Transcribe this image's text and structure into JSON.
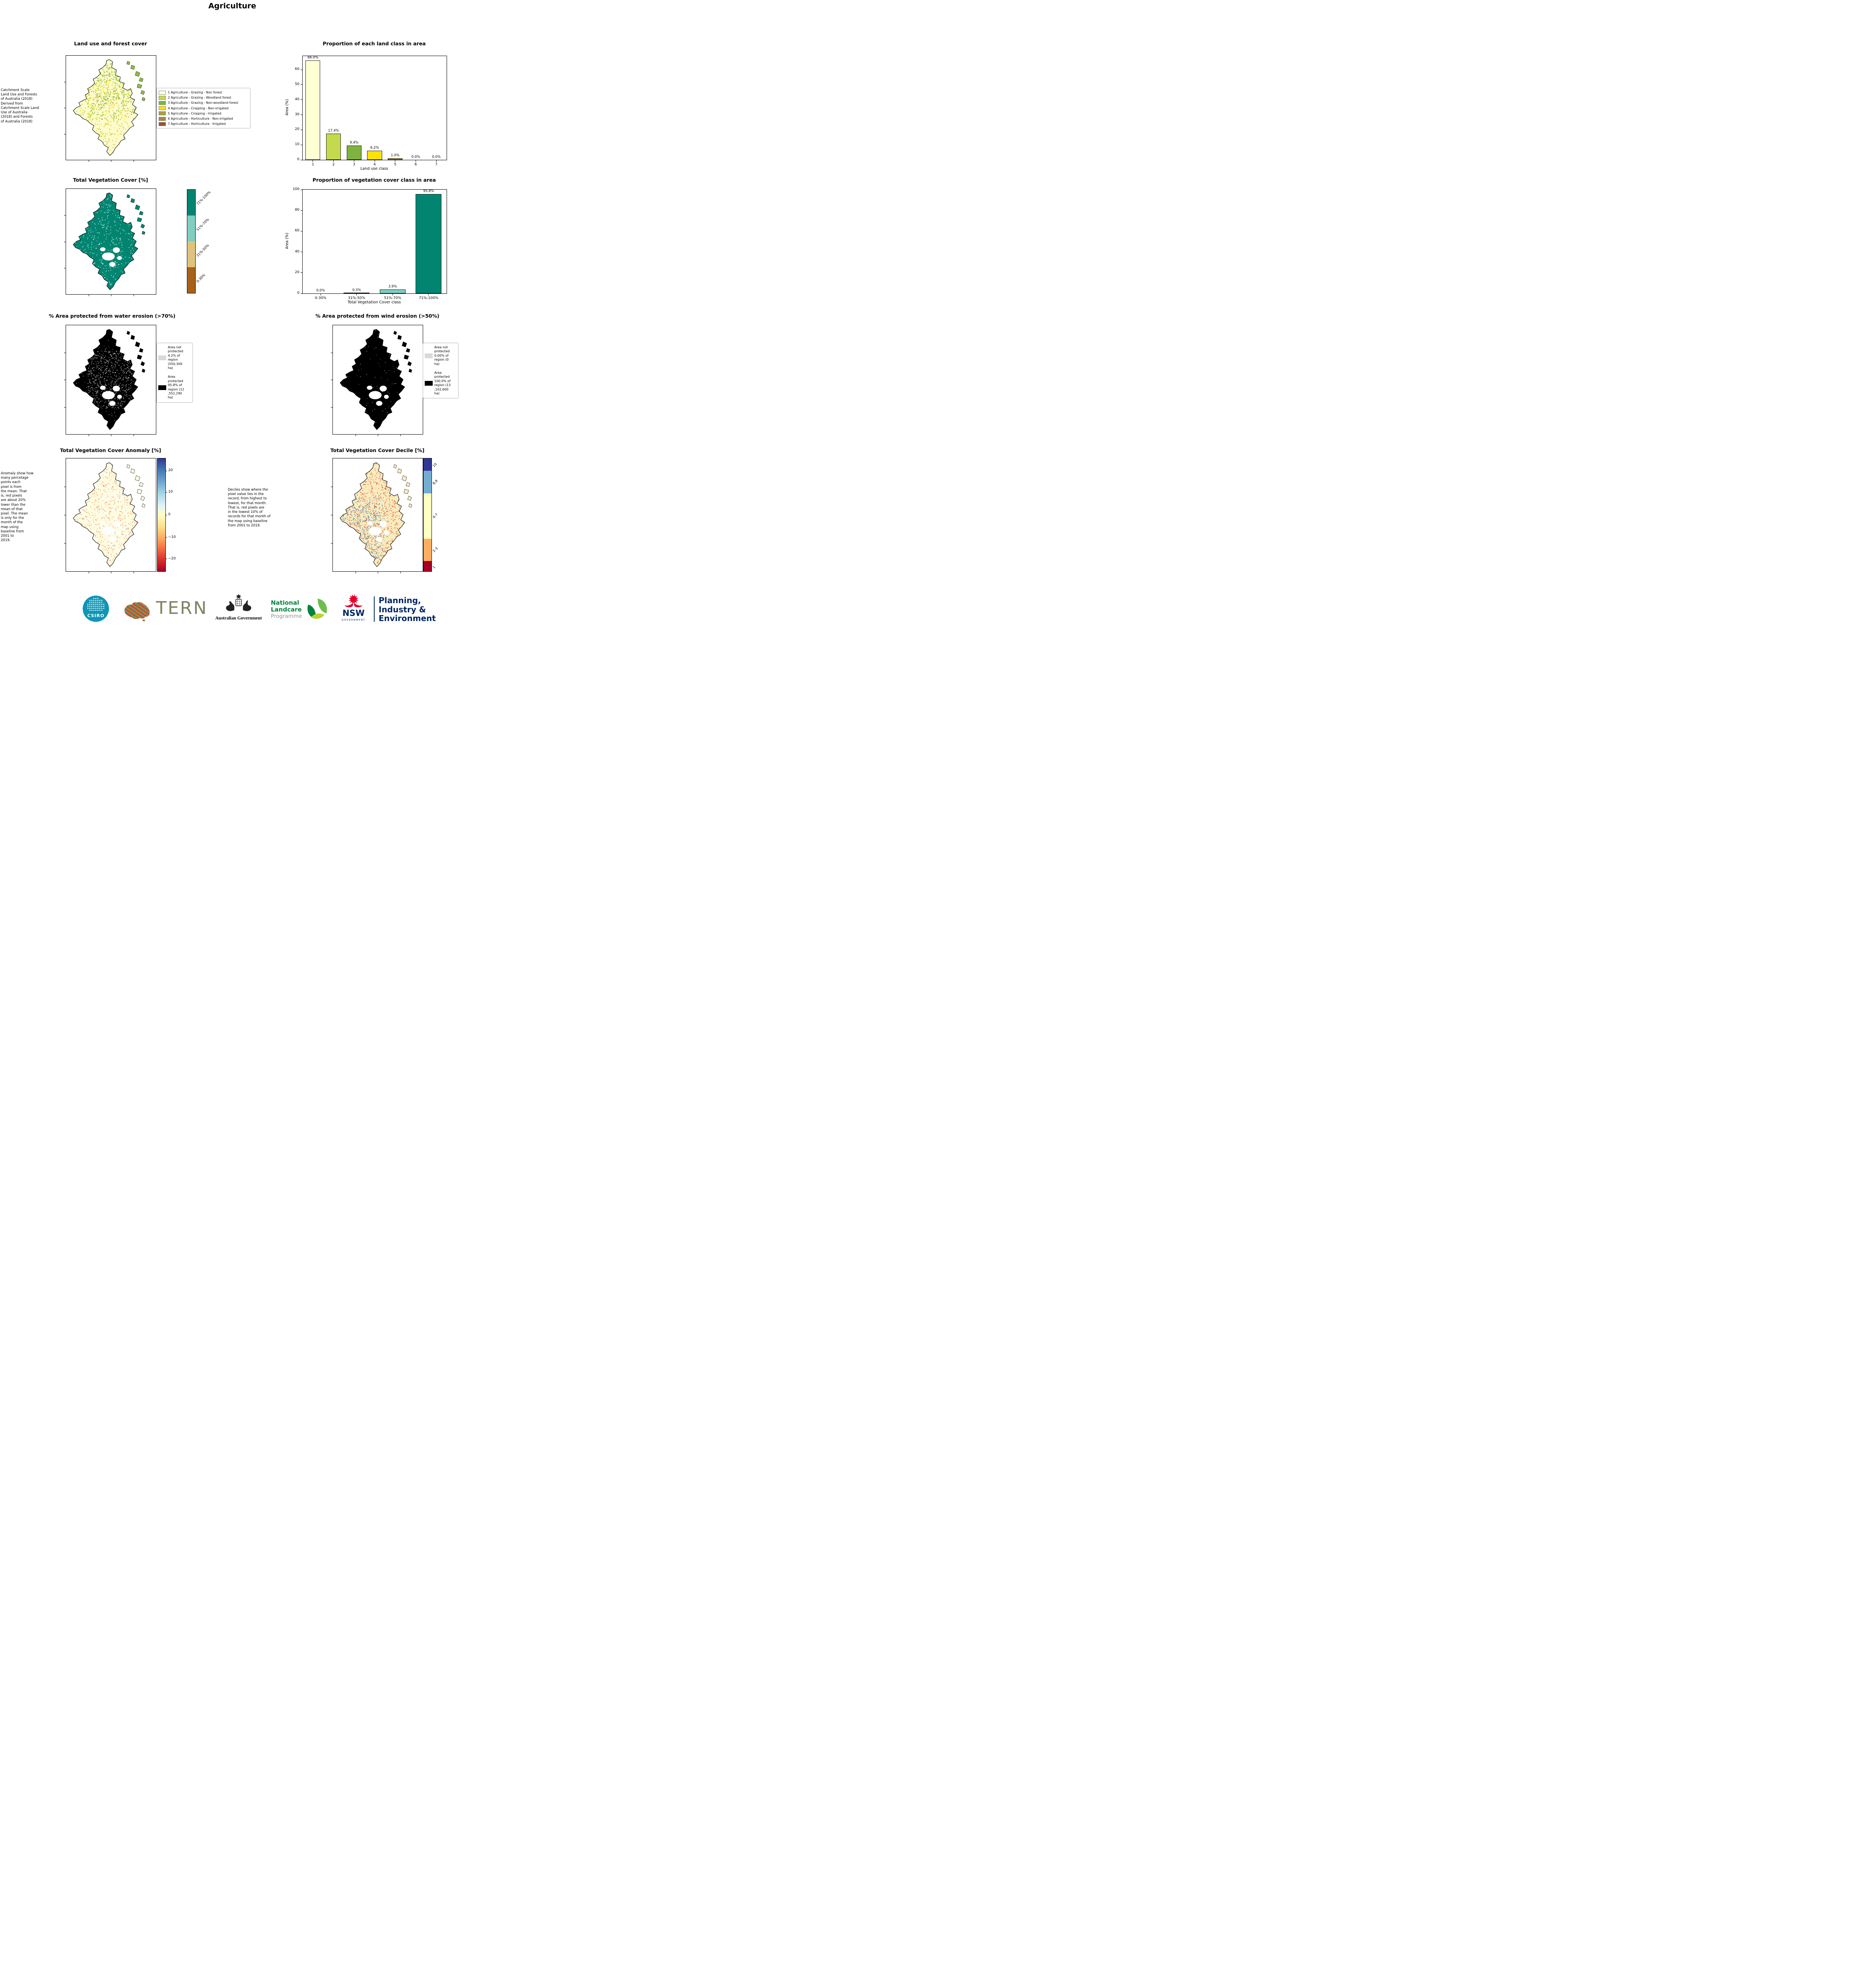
{
  "page_title": "Agriculture",
  "chart_data": [
    {
      "type": "bar",
      "title": "Proportion of each land class in area",
      "xlabel": "Land use class",
      "ylabel": "Area (%)",
      "categories": [
        "1",
        "2",
        "3",
        "4",
        "5",
        "6",
        "7"
      ],
      "values": [
        66.0,
        17.4,
        9.4,
        6.2,
        1.0,
        0.0,
        0.0
      ],
      "value_labels": [
        "66.0%",
        "17.4%",
        "9.4%",
        "6.2%",
        "1.0%",
        "0.0%",
        "0.0%"
      ],
      "bar_colors": [
        "#ffffd4",
        "#c5d94f",
        "#7fb241",
        "#ffe200",
        "#ab9e3c",
        "#a9834f",
        "#95552f"
      ],
      "yticks": [
        0,
        10,
        20,
        30,
        40,
        50,
        60
      ],
      "ylim": [
        0,
        69
      ],
      "grid": false,
      "legend_position": "none"
    },
    {
      "type": "bar",
      "title": "Proportion of vegetation cover class in area",
      "xlabel": "Total Vegetation Cover class",
      "ylabel": "Area (%)",
      "categories": [
        "0-30%",
        "31%-50%",
        "51%-70%",
        "71%-100%"
      ],
      "values": [
        0.0,
        0.3,
        3.9,
        95.8
      ],
      "value_labels": [
        "0.0%",
        "0.3%",
        "3.9%",
        "95.8%"
      ],
      "bar_colors": [
        "#a6611a",
        "#dfc27d",
        "#80cdc1",
        "#018571"
      ],
      "yticks": [
        0,
        20,
        40,
        60,
        80,
        100
      ],
      "ylim": [
        0,
        100
      ],
      "grid": false,
      "legend_position": "none"
    }
  ],
  "panels": {
    "land_use": {
      "title": "Land use and forest cover",
      "side_note": "Catchment Scale\nLand Use and Forests\nof Australia (2018)\nDerived from\nCatchment Scale Land\nUse of Australia\n(2018) and Forests\nof Australia (2018)",
      "legend": [
        {
          "label": "1 Agriculture - Grazing - Non forest",
          "color": "#ffffd4"
        },
        {
          "label": "2 Agriculture - Grazing - Woodland forest",
          "color": "#c5d94f"
        },
        {
          "label": "3 Agriculture - Grazing - Non-woodland forest",
          "color": "#7fb241"
        },
        {
          "label": "4 Agriculture - Cropping - Non-irrigated",
          "color": "#ffe200"
        },
        {
          "label": "5 Agriculture - Cropping - Irrigated",
          "color": "#ab9e3c"
        },
        {
          "label": "6 Agriculture - Horticulture - Non-irrigated",
          "color": "#a9834f"
        },
        {
          "label": "7 Agriculture - Horticulture - Irrigated",
          "color": "#95552f"
        }
      ]
    },
    "veg_cover": {
      "title": "Total Vegetation Cover [%]",
      "colorbar": [
        {
          "label": "71%-100%",
          "color": "#018571",
          "fraction": 0.25
        },
        {
          "label": "51%-70%",
          "color": "#80cdc1",
          "fraction": 0.25
        },
        {
          "label": "31%-50%",
          "color": "#dfc27d",
          "fraction": 0.25
        },
        {
          "label": "0-30%",
          "color": "#a6611a",
          "fraction": 0.25
        }
      ]
    },
    "water": {
      "title": "% Area protected from water erosion (>70%)",
      "legend": [
        {
          "color": "#d9d9d9",
          "text": "Area not\nprotected\n4.2% of\nregion\n(550,309\nha)"
        },
        {
          "color": "#000000",
          "text": "Area\nprotected\n95.8% of\nregion (12\n,552,290\nha)"
        }
      ]
    },
    "wind": {
      "title": "% Area protected from wind erosion (>50%)",
      "legend": [
        {
          "color": "#d9d9d9",
          "text": "Area not\nprotected\n0.00% of\nregion (0\nha)"
        },
        {
          "color": "#000000",
          "text": "Area\nprotected\n100.0% of\nregion (13\n,102,600\nha)"
        }
      ]
    },
    "anomaly": {
      "title": "Total Vegetation Cover Anomaly [%]",
      "note": "Anomaly show how\nmany percetage\npoints each\npixel is from\nthe mean. That\nis, red pixels\nare about 20%\nlower than the\nmean of that\npixel. The mean\nis only for the\nmonth of the\nmap using\nbaseline from\n2001 to\n2019.",
      "colorbar_ticks": [
        "20",
        "10",
        "0",
        "−10",
        "−20"
      ]
    },
    "decile": {
      "title": "Total Vegetation Cover Decile [%]",
      "note": "Deciles show where the\npixel value lies in the\nrecord, from highest to\nlowest, for that month.\nThat is, red pixels are\nin the lowest 10% of\nrecords for that month of\nthe map using baseline\nfrom 2001 to 2019.",
      "colorbar": [
        {
          "label": "10",
          "color": "#313695",
          "fraction": 0.11
        },
        {
          "label": "8,9",
          "color": "#74add1",
          "fraction": 0.2
        },
        {
          "label": "4-7",
          "color": "#ffffbf",
          "fraction": 0.4
        },
        {
          "label": "2-3",
          "color": "#fdae61",
          "fraction": 0.2
        },
        {
          "label": "1",
          "color": "#a50026",
          "fraction": 0.09
        }
      ]
    }
  },
  "maps": {
    "land_use": {
      "base": "#fffbce",
      "island": "#8fbf3f",
      "patches": false,
      "speckles": [
        {
          "color": "#c5d94f",
          "n": 900,
          "size": 2.4
        },
        {
          "color": "#8fbf3f",
          "n": 300,
          "size": 2.4,
          "region": [
            40,
            15,
            170,
            160
          ]
        },
        {
          "color": "#ffe733",
          "n": 220,
          "size": 2.2,
          "region": [
            25,
            60,
            140,
            205
          ]
        },
        {
          "color": "#7fb241",
          "n": 160,
          "size": 2.0,
          "region": [
            60,
            10,
            160,
            120
          ]
        },
        {
          "color": "#a9834f",
          "n": 45,
          "size": 1.6,
          "region": [
            55,
            40,
            125,
            130
          ]
        }
      ]
    },
    "veg_cover": {
      "base": "#018571",
      "patches": true,
      "speckles": [
        {
          "color": "#ffffff",
          "n": 650,
          "size": 1.6
        },
        {
          "color": "#80cdc1",
          "n": 260,
          "size": 1.8
        }
      ]
    },
    "water": {
      "base": "#000000",
      "patches": true,
      "speckles": [
        {
          "color": "#bdbdbd",
          "n": 520,
          "size": 1.6,
          "region": [
            40,
            60,
            150,
            200
          ]
        },
        {
          "color": "#8c8c8c",
          "n": 260,
          "size": 1.4,
          "region": [
            30,
            40,
            160,
            220
          ]
        },
        {
          "color": "#ffffff",
          "n": 130,
          "size": 1.3
        }
      ]
    },
    "wind": {
      "base": "#000000",
      "patches": true,
      "speckles": [
        {
          "color": "#ffffff",
          "n": 140,
          "size": 1.2
        },
        {
          "color": "#9e9e9e",
          "n": 90,
          "size": 1.2
        }
      ]
    },
    "anomaly": {
      "base": "#fffce3",
      "patches": true,
      "speckles": [
        {
          "color": "#fdae61",
          "n": 820,
          "size": 1.8
        },
        {
          "color": "#f46d43",
          "n": 260,
          "size": 1.6
        },
        {
          "color": "#d73027",
          "n": 90,
          "size": 1.4
        },
        {
          "color": "#abd9e9",
          "n": 230,
          "size": 1.6
        },
        {
          "color": "#74add1",
          "n": 170,
          "size": 1.5
        },
        {
          "color": "#4575b4",
          "n": 60,
          "size": 1.4
        }
      ]
    },
    "decile": {
      "base": "#f9ecbe",
      "patches": true,
      "speckles": [
        {
          "color": "#f46d43",
          "n": 900,
          "size": 1.9
        },
        {
          "color": "#d73027",
          "n": 460,
          "size": 1.8
        },
        {
          "color": "#a50026",
          "n": 160,
          "size": 1.6
        },
        {
          "color": "#fdae61",
          "n": 520,
          "size": 1.8
        },
        {
          "color": "#74add1",
          "n": 360,
          "size": 1.8,
          "region": [
            8,
            90,
            115,
            235
          ]
        },
        {
          "color": "#4575b4",
          "n": 260,
          "size": 1.7,
          "region": [
            8,
            100,
            105,
            235
          ]
        },
        {
          "color": "#74add1",
          "n": 160,
          "size": 1.6
        }
      ]
    }
  },
  "footer": {
    "csiro": {
      "label": "CSIRO",
      "color": "#1095b5"
    },
    "tern": {
      "label": "TERN",
      "color": "#7f8260"
    },
    "aus_gov": {
      "label": "Australian Government"
    },
    "landcare": {
      "line1": "National",
      "line2": "Landcare",
      "line3": "Programme",
      "green": "#00833e",
      "gray": "#8f9491"
    },
    "nsw": {
      "label": "NSW",
      "sub": "GOVERNMENT",
      "navy": "#002664",
      "red": "#e4002b"
    },
    "dept": {
      "line1": "Planning,",
      "line2": "Industry &",
      "line3": "Environment",
      "color": "#002664"
    }
  }
}
